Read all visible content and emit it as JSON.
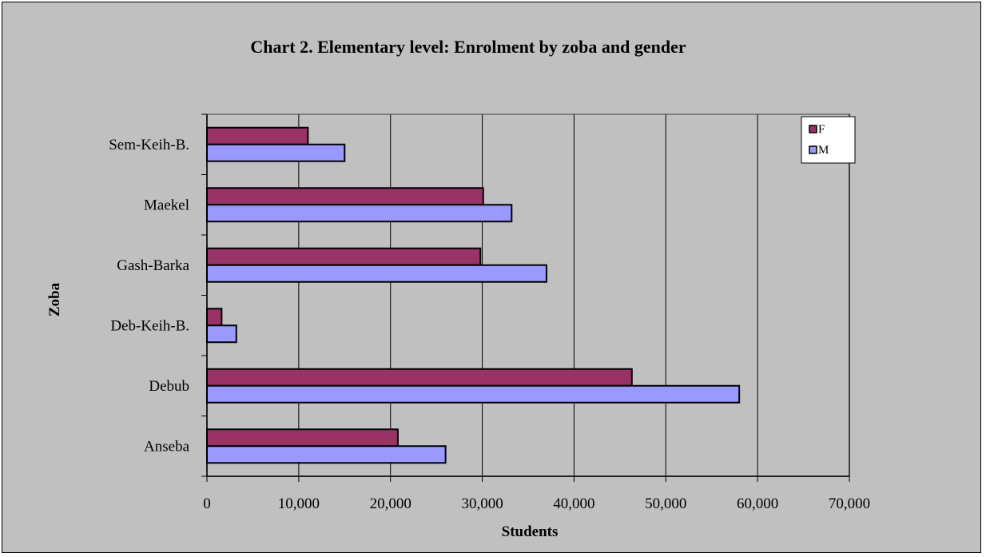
{
  "chart_data": {
    "type": "bar",
    "orientation": "horizontal",
    "title": "Chart 2. Elementary level: Enrolment by zoba and gender",
    "xlabel": "Students",
    "ylabel": "Zoba",
    "categories": [
      "Anseba",
      "Debub",
      "Deb-Keih-B.",
      "Gash-Barka",
      "Maekel",
      "Sem-Keih-B."
    ],
    "series": [
      {
        "name": "F",
        "values": [
          20800,
          46300,
          1600,
          29800,
          30100,
          11000
        ],
        "color": "#993366"
      },
      {
        "name": "M",
        "values": [
          26000,
          58000,
          3200,
          37000,
          33200,
          15000
        ],
        "color": "#9999ff"
      }
    ],
    "xlim": [
      0,
      70000
    ],
    "xticks": [
      "0",
      "10,000",
      "20,000",
      "30,000",
      "40,000",
      "50,000",
      "60,000",
      "70,000"
    ],
    "grid": true,
    "legend_position": "top-right",
    "plot_background": "#c0c0c0",
    "gridline_color": "#000000"
  }
}
